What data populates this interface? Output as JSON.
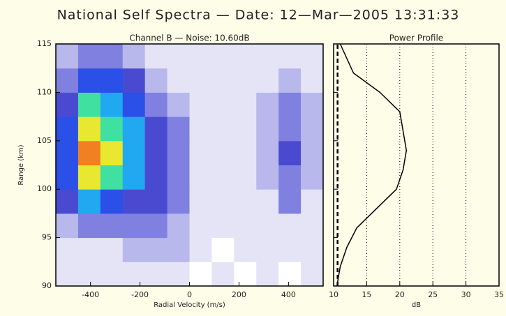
{
  "title": "National Self Spectra — Date: 12—Mar—2005 13:31:33",
  "chart_data": [
    {
      "type": "heatmap",
      "title": "Channel B — Noise: 10.60dB",
      "x_label": "Radial Velocity (m/s)",
      "y_label": "Range (km)",
      "xlim": [
        -540,
        540
      ],
      "ylim": [
        90,
        115
      ],
      "xticks": [
        -400,
        -200,
        0,
        200,
        400
      ],
      "yticks": [
        90,
        95,
        100,
        105,
        110,
        115
      ],
      "x_bins": [
        -540,
        -450,
        -360,
        -270,
        -180,
        -90,
        0,
        90,
        180,
        270,
        360,
        450,
        540
      ],
      "y_bins": [
        90,
        92.5,
        95,
        97.5,
        100,
        102.5,
        105,
        107.5,
        110,
        112.5,
        115
      ],
      "colorscale": [
        "#ffffff",
        "#e4e4f6",
        "#b8b8ec",
        "#8080e0",
        "#4a4ad0",
        "#2a50e8",
        "#20a8f0",
        "#40e0a0",
        "#e8e830",
        "#f08020",
        "#e02020"
      ],
      "z": [
        [
          1,
          1,
          1,
          1,
          1,
          1,
          0,
          1,
          0,
          1,
          0,
          1
        ],
        [
          1,
          1,
          1,
          2,
          2,
          2,
          1,
          0,
          1,
          1,
          1,
          1
        ],
        [
          2,
          3,
          3,
          3,
          3,
          2,
          1,
          1,
          1,
          1,
          1,
          1
        ],
        [
          4,
          6,
          5,
          4,
          4,
          3,
          1,
          1,
          1,
          1,
          3,
          1
        ],
        [
          5,
          8,
          7,
          6,
          4,
          3,
          1,
          1,
          1,
          2,
          3,
          2
        ],
        [
          5,
          9,
          8,
          6,
          4,
          3,
          1,
          1,
          1,
          2,
          4,
          2
        ],
        [
          5,
          8,
          7,
          6,
          4,
          3,
          1,
          1,
          1,
          2,
          3,
          2
        ],
        [
          4,
          7,
          6,
          5,
          3,
          2,
          1,
          1,
          1,
          2,
          3,
          2
        ],
        [
          3,
          5,
          5,
          4,
          2,
          1,
          1,
          1,
          1,
          1,
          2,
          1
        ],
        [
          2,
          3,
          3,
          2,
          1,
          1,
          1,
          1,
          1,
          1,
          1,
          1
        ]
      ]
    },
    {
      "type": "profile",
      "title": "Power Profile",
      "x_label": "dB",
      "xlim": [
        10,
        35
      ],
      "ylim": [
        90,
        115
      ],
      "xticks": [
        10,
        15,
        20,
        25,
        30,
        35
      ],
      "yticks": [
        90,
        95,
        100,
        105,
        110,
        115
      ],
      "grid": true,
      "y": [
        90,
        92,
        94,
        96,
        98,
        100,
        102,
        104,
        106,
        108,
        110,
        112,
        115
      ],
      "series": [
        {
          "color": "#000000",
          "dash": false,
          "values": [
            10.5,
            11,
            12,
            13.5,
            16.5,
            19.5,
            20.5,
            21,
            20.5,
            20,
            17,
            13,
            11
          ]
        },
        {
          "color": "#000000",
          "dash": true,
          "values": [
            10.6,
            10.6,
            10.6,
            10.6,
            10.6,
            10.6,
            10.6,
            10.6,
            10.6,
            10.6,
            10.6,
            10.6,
            10.6
          ]
        }
      ]
    }
  ]
}
